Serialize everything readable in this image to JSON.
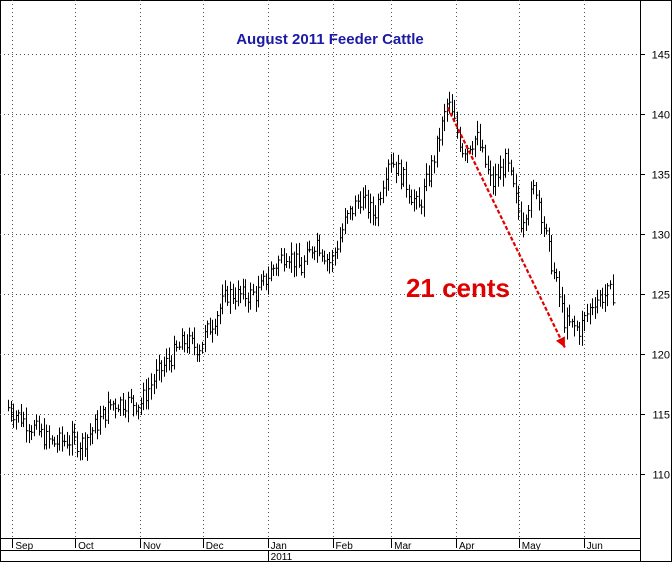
{
  "chart_data": {
    "type": "ohlc",
    "title": "August 2011 Feeder Cattle",
    "ylim": [
      105,
      149
    ],
    "yticks": [
      110,
      115,
      120,
      125,
      130,
      135,
      140,
      145
    ],
    "x_months": [
      "Sep",
      "Oct",
      "Nov",
      "Dec",
      "Jan",
      "Feb",
      "Mar",
      "Apr",
      "May",
      "Jun"
    ],
    "x_year_label": "2011",
    "grid": true,
    "y_axis_side": "right",
    "annotation": {
      "text": "21 cents",
      "arrow_from": {
        "date": "2011-03-28",
        "value": 140.5
      },
      "arrow_to": {
        "date": "2011-05-23",
        "value": 120.5
      },
      "color": "#e00000"
    },
    "series": [
      {
        "x": [
          "2010-08-30",
          "2010-09-06",
          "2010-09-13",
          "2010-09-20",
          "2010-09-27",
          "2010-10-04",
          "2010-10-11",
          "2010-10-18",
          "2010-10-25",
          "2010-11-01",
          "2010-11-08",
          "2010-11-15",
          "2010-11-22",
          "2010-11-29",
          "2010-12-06",
          "2010-12-13",
          "2010-12-20",
          "2010-12-27",
          "2011-01-03",
          "2011-01-10",
          "2011-01-17",
          "2011-01-24",
          "2011-01-31",
          "2011-02-07",
          "2011-02-14",
          "2011-02-21",
          "2011-02-28",
          "2011-03-07",
          "2011-03-14",
          "2011-03-21",
          "2011-03-28",
          "2011-04-04",
          "2011-04-11",
          "2011-04-18",
          "2011-04-25",
          "2011-05-02",
          "2011-05-09",
          "2011-05-16",
          "2011-05-23",
          "2011-05-30",
          "2011-06-06",
          "2011-06-13"
        ],
        "values": [
          115.5,
          114.5,
          113.5,
          112.5,
          112.8,
          112.5,
          114.0,
          115.8,
          116.0,
          115.8,
          118.0,
          119.5,
          121.0,
          120.5,
          122.8,
          125.0,
          124.8,
          125.0,
          127.0,
          128.5,
          127.0,
          129.5,
          127.5,
          131.0,
          133.0,
          131.5,
          136.5,
          134.5,
          132.0,
          136.0,
          141.0,
          137.0,
          138.0,
          134.0,
          136.0,
          131.0,
          134.0,
          128.0,
          122.5,
          122.0,
          124.5,
          125.0
        ]
      }
    ]
  }
}
